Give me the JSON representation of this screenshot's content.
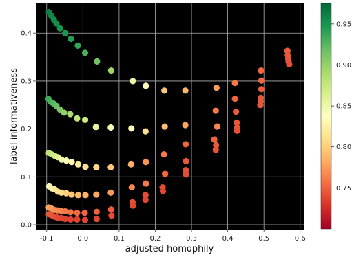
{
  "chart_data": {
    "type": "scatter",
    "title": "",
    "xlabel": "adjusted homophily",
    "ylabel": "label informativeness",
    "xlim": [
      -0.13,
      0.61
    ],
    "ylim": [
      -0.01,
      0.462
    ],
    "xticks": [
      -0.1,
      0.0,
      0.1,
      0.2,
      0.3,
      0.4,
      0.5,
      0.6
    ],
    "xtick_labels": [
      "-0.1",
      "0.0",
      "0.1",
      "0.2",
      "0.3",
      "0.4",
      "0.5",
      "0.6"
    ],
    "yticks": [
      0.0,
      0.1,
      0.2,
      0.3,
      0.4
    ],
    "ytick_labels": [
      "0.0",
      "0.1",
      "0.2",
      "0.3",
      "0.4"
    ],
    "grid": true,
    "plot_background": "#000000",
    "colorbar": {
      "colormap": "RdYlGn",
      "range": [
        0.7,
        0.975
      ],
      "ticks": [
        0.75,
        0.8,
        0.85,
        0.9,
        0.95
      ],
      "tick_labels": [
        "0.75",
        "0.80",
        "0.85",
        "0.90",
        "0.95"
      ]
    },
    "points": [
      {
        "x": -0.094,
        "y": 0.444,
        "c": 0.96
      },
      {
        "x": -0.088,
        "y": 0.437,
        "c": 0.958
      },
      {
        "x": -0.08,
        "y": 0.428,
        "c": 0.955
      },
      {
        "x": -0.073,
        "y": 0.42,
        "c": 0.953
      },
      {
        "x": -0.063,
        "y": 0.41,
        "c": 0.95
      },
      {
        "x": -0.049,
        "y": 0.4,
        "c": 0.947
      },
      {
        "x": -0.033,
        "y": 0.388,
        "c": 0.943
      },
      {
        "x": -0.014,
        "y": 0.374,
        "c": 0.938
      },
      {
        "x": 0.006,
        "y": 0.359,
        "c": 0.93
      },
      {
        "x": 0.039,
        "y": 0.341,
        "c": 0.915
      },
      {
        "x": 0.078,
        "y": 0.322,
        "c": 0.895
      },
      {
        "x": 0.138,
        "y": 0.3,
        "c": 0.85
      },
      {
        "x": 0.174,
        "y": 0.29,
        "c": 0.835
      },
      {
        "x": 0.225,
        "y": 0.28,
        "c": 0.795
      },
      {
        "x": 0.283,
        "y": 0.28,
        "c": 0.787
      },
      {
        "x": 0.369,
        "y": 0.286,
        "c": 0.775
      },
      {
        "x": 0.42,
        "y": 0.296,
        "c": 0.76
      },
      {
        "x": 0.492,
        "y": 0.322,
        "c": 0.752
      },
      {
        "x": 0.565,
        "y": 0.363,
        "c": 0.748
      },
      {
        "x": 0.566,
        "y": 0.354,
        "c": 0.745
      },
      {
        "x": 0.567,
        "y": 0.347,
        "c": 0.745
      },
      {
        "x": 0.568,
        "y": 0.341,
        "c": 0.744
      },
      {
        "x": 0.57,
        "y": 0.335,
        "c": 0.742
      },
      {
        "x": -0.095,
        "y": 0.263,
        "c": 0.935
      },
      {
        "x": -0.088,
        "y": 0.256,
        "c": 0.93
      },
      {
        "x": -0.081,
        "y": 0.253,
        "c": 0.925
      },
      {
        "x": -0.073,
        "y": 0.248,
        "c": 0.918
      },
      {
        "x": -0.063,
        "y": 0.24,
        "c": 0.91
      },
      {
        "x": -0.052,
        "y": 0.234,
        "c": 0.9
      },
      {
        "x": -0.035,
        "y": 0.231,
        "c": 0.89
      },
      {
        "x": -0.016,
        "y": 0.222,
        "c": 0.88
      },
      {
        "x": 0.006,
        "y": 0.219,
        "c": 0.87
      },
      {
        "x": 0.036,
        "y": 0.204,
        "c": 0.855
      },
      {
        "x": 0.077,
        "y": 0.203,
        "c": 0.845
      },
      {
        "x": 0.134,
        "y": 0.201,
        "c": 0.832
      },
      {
        "x": 0.173,
        "y": 0.195,
        "c": 0.812
      },
      {
        "x": 0.226,
        "y": 0.205,
        "c": 0.79
      },
      {
        "x": 0.283,
        "y": 0.208,
        "c": 0.78
      },
      {
        "x": 0.371,
        "y": 0.205,
        "c": 0.765
      },
      {
        "x": 0.42,
        "y": 0.263,
        "c": 0.752
      },
      {
        "x": 0.493,
        "y": 0.283,
        "c": 0.748
      },
      {
        "x": 0.493,
        "y": 0.301,
        "c": 0.752
      },
      {
        "x": -0.094,
        "y": 0.15,
        "c": 0.88
      },
      {
        "x": -0.086,
        "y": 0.147,
        "c": 0.875
      },
      {
        "x": -0.078,
        "y": 0.144,
        "c": 0.87
      },
      {
        "x": -0.069,
        "y": 0.141,
        "c": 0.862
      },
      {
        "x": -0.059,
        "y": 0.136,
        "c": 0.85
      },
      {
        "x": -0.046,
        "y": 0.134,
        "c": 0.842
      },
      {
        "x": -0.031,
        "y": 0.131,
        "c": 0.832
      },
      {
        "x": -0.013,
        "y": 0.126,
        "c": 0.822
      },
      {
        "x": 0.007,
        "y": 0.121,
        "c": 0.812
      },
      {
        "x": 0.037,
        "y": 0.12,
        "c": 0.805
      },
      {
        "x": 0.077,
        "y": 0.12,
        "c": 0.797
      },
      {
        "x": 0.133,
        "y": 0.126,
        "c": 0.785
      },
      {
        "x": 0.174,
        "y": 0.131,
        "c": 0.772
      },
      {
        "x": 0.224,
        "y": 0.147,
        "c": 0.76
      },
      {
        "x": 0.284,
        "y": 0.168,
        "c": 0.752
      },
      {
        "x": 0.363,
        "y": 0.178,
        "c": 0.75
      },
      {
        "x": 0.368,
        "y": 0.166,
        "c": 0.746
      },
      {
        "x": 0.367,
        "y": 0.156,
        "c": 0.744
      },
      {
        "x": 0.423,
        "y": 0.236,
        "c": 0.748
      },
      {
        "x": 0.425,
        "y": 0.213,
        "c": 0.745
      },
      {
        "x": 0.426,
        "y": 0.203,
        "c": 0.743
      },
      {
        "x": 0.426,
        "y": 0.196,
        "c": 0.742
      },
      {
        "x": 0.491,
        "y": 0.265,
        "c": 0.745
      },
      {
        "x": 0.491,
        "y": 0.257,
        "c": 0.745
      },
      {
        "x": 0.49,
        "y": 0.25,
        "c": 0.744
      },
      {
        "x": 0.367,
        "y": 0.238,
        "c": 0.76
      },
      {
        "x": -0.093,
        "y": 0.08,
        "c": 0.83
      },
      {
        "x": -0.086,
        "y": 0.076,
        "c": 0.825
      },
      {
        "x": -0.078,
        "y": 0.074,
        "c": 0.82
      },
      {
        "x": -0.069,
        "y": 0.069,
        "c": 0.812
      },
      {
        "x": -0.059,
        "y": 0.067,
        "c": 0.808
      },
      {
        "x": -0.046,
        "y": 0.066,
        "c": 0.802
      },
      {
        "x": -0.031,
        "y": 0.063,
        "c": 0.797
      },
      {
        "x": -0.013,
        "y": 0.062,
        "c": 0.79
      },
      {
        "x": 0.007,
        "y": 0.062,
        "c": 0.785
      },
      {
        "x": 0.037,
        "y": 0.063,
        "c": 0.78
      },
      {
        "x": 0.077,
        "y": 0.067,
        "c": 0.775
      },
      {
        "x": 0.135,
        "y": 0.078,
        "c": 0.765
      },
      {
        "x": 0.174,
        "y": 0.086,
        "c": 0.76
      },
      {
        "x": 0.227,
        "y": 0.106,
        "c": 0.752
      },
      {
        "x": 0.285,
        "y": 0.133,
        "c": 0.745
      },
      {
        "x": 0.284,
        "y": 0.114,
        "c": 0.742
      },
      {
        "x": 0.285,
        "y": 0.105,
        "c": 0.74
      },
      {
        "x": 0.22,
        "y": 0.078,
        "c": 0.74
      },
      {
        "x": 0.221,
        "y": 0.07,
        "c": 0.738
      },
      {
        "x": 0.137,
        "y": 0.047,
        "c": 0.742
      },
      {
        "x": 0.138,
        "y": 0.04,
        "c": 0.738
      },
      {
        "x": 0.173,
        "y": 0.062,
        "c": 0.74
      },
      {
        "x": 0.173,
        "y": 0.052,
        "c": 0.738
      },
      {
        "x": -0.094,
        "y": 0.036,
        "c": 0.78
      },
      {
        "x": -0.087,
        "y": 0.034,
        "c": 0.775
      },
      {
        "x": -0.079,
        "y": 0.031,
        "c": 0.772
      },
      {
        "x": -0.071,
        "y": 0.03,
        "c": 0.768
      },
      {
        "x": -0.06,
        "y": 0.029,
        "c": 0.765
      },
      {
        "x": -0.049,
        "y": 0.028,
        "c": 0.76
      },
      {
        "x": -0.034,
        "y": 0.026,
        "c": 0.757
      },
      {
        "x": -0.016,
        "y": 0.025,
        "c": 0.754
      },
      {
        "x": 0.005,
        "y": 0.025,
        "c": 0.752
      },
      {
        "x": 0.038,
        "y": 0.027,
        "c": 0.75
      },
      {
        "x": 0.078,
        "y": 0.032,
        "c": 0.748
      },
      {
        "x": 0.079,
        "y": 0.019,
        "c": 0.74
      },
      {
        "x": 0.038,
        "y": 0.012,
        "c": 0.738
      },
      {
        "x": 0.006,
        "y": 0.01,
        "c": 0.737
      },
      {
        "x": -0.016,
        "y": 0.011,
        "c": 0.736
      },
      {
        "x": -0.034,
        "y": 0.011,
        "c": 0.736
      },
      {
        "x": -0.049,
        "y": 0.012,
        "c": 0.735
      },
      {
        "x": -0.06,
        "y": 0.014,
        "c": 0.736
      },
      {
        "x": -0.071,
        "y": 0.015,
        "c": 0.738
      },
      {
        "x": -0.079,
        "y": 0.017,
        "c": 0.74
      },
      {
        "x": -0.087,
        "y": 0.02,
        "c": 0.742
      },
      {
        "x": -0.094,
        "y": 0.022,
        "c": 0.745
      }
    ]
  }
}
